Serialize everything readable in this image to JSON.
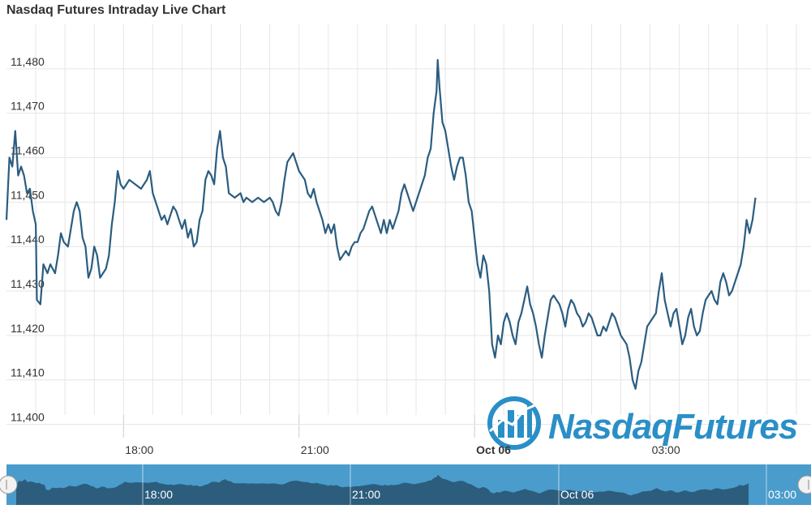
{
  "colors": {
    "line": "#2b5d80",
    "grid": "#e6e6e6",
    "navigator_bg": "#4a9ccc",
    "navigator_area": "#2c5d7c",
    "brand": "#2a8fc7"
  },
  "brand": {
    "text": "NasdaqFutures",
    "icon": "chart-globe-logo-icon"
  },
  "navigator": {
    "left_handle_icon": "scroll-handle-left-icon",
    "right_handle_icon": "scroll-handle-right-icon",
    "labels": [
      "18:00",
      "21:00",
      "Oct 06",
      "03:00"
    ]
  },
  "chart_data": {
    "type": "line",
    "title": "Nasdaq Futures Intraday Live Chart",
    "xlabel": "",
    "ylabel": "",
    "ylim": [
      11397,
      11490
    ],
    "xlim": [
      0,
      13.75
    ],
    "grid": true,
    "legend": "none",
    "yticks": [
      11400,
      11410,
      11420,
      11430,
      11440,
      11450,
      11460,
      11470,
      11480
    ],
    "ytick_labels": [
      "11,400",
      "11,410",
      "11,420",
      "11,430",
      "11,440",
      "11,450",
      "11,460",
      "11,470",
      "11,480"
    ],
    "xticks": [
      {
        "x": 2,
        "label": "18:00",
        "bold": false
      },
      {
        "x": 5,
        "label": "21:00",
        "bold": false
      },
      {
        "x": 8,
        "label": "Oct 06",
        "bold": true
      },
      {
        "x": 11,
        "label": "03:00",
        "bold": false
      }
    ],
    "series": [
      {
        "points": [
          [
            0,
            11446
          ],
          [
            0.05,
            11460
          ],
          [
            0.1,
            11458
          ],
          [
            0.15,
            11466
          ],
          [
            0.2,
            11456
          ],
          [
            0.25,
            11458
          ],
          [
            0.3,
            11456
          ],
          [
            0.35,
            11452
          ],
          [
            0.4,
            11453
          ],
          [
            0.45,
            11448
          ],
          [
            0.5,
            11445
          ],
          [
            0.52,
            11428
          ],
          [
            0.58,
            11427
          ],
          [
            0.63,
            11436
          ],
          [
            0.7,
            11434
          ],
          [
            0.75,
            11436
          ],
          [
            0.83,
            11434
          ],
          [
            0.88,
            11438
          ],
          [
            0.93,
            11443
          ],
          [
            0.98,
            11441
          ],
          [
            1.05,
            11440
          ],
          [
            1.1,
            11444
          ],
          [
            1.15,
            11448
          ],
          [
            1.2,
            11450
          ],
          [
            1.25,
            11448
          ],
          [
            1.3,
            11442
          ],
          [
            1.35,
            11440
          ],
          [
            1.4,
            11433
          ],
          [
            1.45,
            11435
          ],
          [
            1.5,
            11440
          ],
          [
            1.55,
            11438
          ],
          [
            1.6,
            11433
          ],
          [
            1.65,
            11434
          ],
          [
            1.7,
            11435
          ],
          [
            1.75,
            11438
          ],
          [
            1.8,
            11445
          ],
          [
            1.85,
            11450
          ],
          [
            1.9,
            11457
          ],
          [
            1.95,
            11454
          ],
          [
            2.0,
            11453
          ],
          [
            2.1,
            11455
          ],
          [
            2.2,
            11454
          ],
          [
            2.3,
            11453
          ],
          [
            2.4,
            11455
          ],
          [
            2.45,
            11457
          ],
          [
            2.5,
            11452
          ],
          [
            2.6,
            11448
          ],
          [
            2.65,
            11446
          ],
          [
            2.7,
            11447
          ],
          [
            2.75,
            11445
          ],
          [
            2.8,
            11447
          ],
          [
            2.85,
            11449
          ],
          [
            2.9,
            11448
          ],
          [
            3.0,
            11444
          ],
          [
            3.05,
            11446
          ],
          [
            3.1,
            11442
          ],
          [
            3.15,
            11444
          ],
          [
            3.2,
            11440
          ],
          [
            3.25,
            11441
          ],
          [
            3.3,
            11446
          ],
          [
            3.35,
            11448
          ],
          [
            3.4,
            11455
          ],
          [
            3.45,
            11457
          ],
          [
            3.5,
            11456
          ],
          [
            3.55,
            11454
          ],
          [
            3.6,
            11462
          ],
          [
            3.65,
            11466
          ],
          [
            3.7,
            11460
          ],
          [
            3.75,
            11458
          ],
          [
            3.8,
            11452
          ],
          [
            3.9,
            11451
          ],
          [
            4.0,
            11452
          ],
          [
            4.05,
            11450
          ],
          [
            4.1,
            11451
          ],
          [
            4.2,
            11450
          ],
          [
            4.3,
            11451
          ],
          [
            4.4,
            11450
          ],
          [
            4.5,
            11451
          ],
          [
            4.55,
            11450
          ],
          [
            4.6,
            11448
          ],
          [
            4.65,
            11447
          ],
          [
            4.7,
            11450
          ],
          [
            4.75,
            11455
          ],
          [
            4.8,
            11459
          ],
          [
            4.85,
            11460
          ],
          [
            4.9,
            11461
          ],
          [
            4.95,
            11459
          ],
          [
            5.0,
            11457
          ],
          [
            5.05,
            11456
          ],
          [
            5.1,
            11455
          ],
          [
            5.15,
            11452
          ],
          [
            5.2,
            11451
          ],
          [
            5.25,
            11453
          ],
          [
            5.3,
            11450
          ],
          [
            5.35,
            11448
          ],
          [
            5.4,
            11446
          ],
          [
            5.45,
            11443
          ],
          [
            5.5,
            11445
          ],
          [
            5.55,
            11443
          ],
          [
            5.6,
            11445
          ],
          [
            5.65,
            11440
          ],
          [
            5.7,
            11437
          ],
          [
            5.75,
            11438
          ],
          [
            5.8,
            11439
          ],
          [
            5.85,
            11438
          ],
          [
            5.9,
            11440
          ],
          [
            5.95,
            11441
          ],
          [
            6.0,
            11441
          ],
          [
            6.05,
            11443
          ],
          [
            6.1,
            11444
          ],
          [
            6.15,
            11446
          ],
          [
            6.2,
            11448
          ],
          [
            6.25,
            11449
          ],
          [
            6.3,
            11447
          ],
          [
            6.35,
            11445
          ],
          [
            6.4,
            11443
          ],
          [
            6.45,
            11446
          ],
          [
            6.5,
            11443
          ],
          [
            6.55,
            11446
          ],
          [
            6.6,
            11444
          ],
          [
            6.65,
            11446
          ],
          [
            6.7,
            11448
          ],
          [
            6.75,
            11452
          ],
          [
            6.8,
            11454
          ],
          [
            6.85,
            11452
          ],
          [
            6.9,
            11450
          ],
          [
            6.95,
            11448
          ],
          [
            7.0,
            11450
          ],
          [
            7.05,
            11452
          ],
          [
            7.1,
            11454
          ],
          [
            7.15,
            11456
          ],
          [
            7.2,
            11460
          ],
          [
            7.25,
            11462
          ],
          [
            7.3,
            11470
          ],
          [
            7.35,
            11475
          ],
          [
            7.37,
            11482
          ],
          [
            7.4,
            11476
          ],
          [
            7.45,
            11468
          ],
          [
            7.5,
            11466
          ],
          [
            7.55,
            11462
          ],
          [
            7.6,
            11458
          ],
          [
            7.65,
            11455
          ],
          [
            7.7,
            11458
          ],
          [
            7.75,
            11460
          ],
          [
            7.8,
            11460
          ],
          [
            7.85,
            11456
          ],
          [
            7.9,
            11450
          ],
          [
            7.95,
            11448
          ],
          [
            8.0,
            11442
          ],
          [
            8.05,
            11436
          ],
          [
            8.1,
            11433
          ],
          [
            8.15,
            11438
          ],
          [
            8.2,
            11436
          ],
          [
            8.25,
            11430
          ],
          [
            8.3,
            11418
          ],
          [
            8.35,
            11415
          ],
          [
            8.4,
            11420
          ],
          [
            8.45,
            11418
          ],
          [
            8.5,
            11423
          ],
          [
            8.55,
            11425
          ],
          [
            8.6,
            11423
          ],
          [
            8.65,
            11420
          ],
          [
            8.7,
            11418
          ],
          [
            8.75,
            11423
          ],
          [
            8.8,
            11425
          ],
          [
            8.85,
            11428
          ],
          [
            8.9,
            11431
          ],
          [
            8.95,
            11427
          ],
          [
            9.0,
            11425
          ],
          [
            9.05,
            11422
          ],
          [
            9.1,
            11418
          ],
          [
            9.15,
            11415
          ],
          [
            9.2,
            11420
          ],
          [
            9.25,
            11424
          ],
          [
            9.3,
            11428
          ],
          [
            9.35,
            11429
          ],
          [
            9.4,
            11428
          ],
          [
            9.45,
            11427
          ],
          [
            9.5,
            11425
          ],
          [
            9.55,
            11422
          ],
          [
            9.6,
            11426
          ],
          [
            9.65,
            11428
          ],
          [
            9.7,
            11427
          ],
          [
            9.75,
            11425
          ],
          [
            9.8,
            11424
          ],
          [
            9.85,
            11422
          ],
          [
            9.9,
            11423
          ],
          [
            9.95,
            11425
          ],
          [
            10.0,
            11424
          ],
          [
            10.05,
            11422
          ],
          [
            10.1,
            11420
          ],
          [
            10.15,
            11420
          ],
          [
            10.2,
            11422
          ],
          [
            10.25,
            11421
          ],
          [
            10.3,
            11423
          ],
          [
            10.35,
            11425
          ],
          [
            10.4,
            11424
          ],
          [
            10.45,
            11422
          ],
          [
            10.5,
            11420
          ],
          [
            10.55,
            11419
          ],
          [
            10.6,
            11418
          ],
          [
            10.65,
            11415
          ],
          [
            10.7,
            11410
          ],
          [
            10.75,
            11408
          ],
          [
            10.8,
            11412
          ],
          [
            10.85,
            11414
          ],
          [
            10.9,
            11418
          ],
          [
            10.95,
            11422
          ],
          [
            11.0,
            11423
          ],
          [
            11.05,
            11424
          ],
          [
            11.1,
            11425
          ],
          [
            11.15,
            11430
          ],
          [
            11.2,
            11434
          ],
          [
            11.25,
            11428
          ],
          [
            11.3,
            11425
          ],
          [
            11.35,
            11422
          ],
          [
            11.4,
            11425
          ],
          [
            11.45,
            11426
          ],
          [
            11.5,
            11422
          ],
          [
            11.55,
            11418
          ],
          [
            11.6,
            11420
          ],
          [
            11.65,
            11424
          ],
          [
            11.7,
            11426
          ],
          [
            11.75,
            11422
          ],
          [
            11.8,
            11420
          ],
          [
            11.85,
            11421
          ],
          [
            11.9,
            11425
          ],
          [
            11.95,
            11428
          ],
          [
            12.0,
            11429
          ],
          [
            12.05,
            11430
          ],
          [
            12.1,
            11428
          ],
          [
            12.15,
            11427
          ],
          [
            12.2,
            11432
          ],
          [
            12.25,
            11434
          ],
          [
            12.3,
            11432
          ],
          [
            12.35,
            11429
          ],
          [
            12.4,
            11430
          ],
          [
            12.45,
            11432
          ],
          [
            12.5,
            11434
          ],
          [
            12.55,
            11436
          ],
          [
            12.6,
            11440
          ],
          [
            12.65,
            11446
          ],
          [
            12.7,
            11443
          ],
          [
            12.75,
            11446
          ],
          [
            12.8,
            11451
          ]
        ]
      }
    ]
  }
}
